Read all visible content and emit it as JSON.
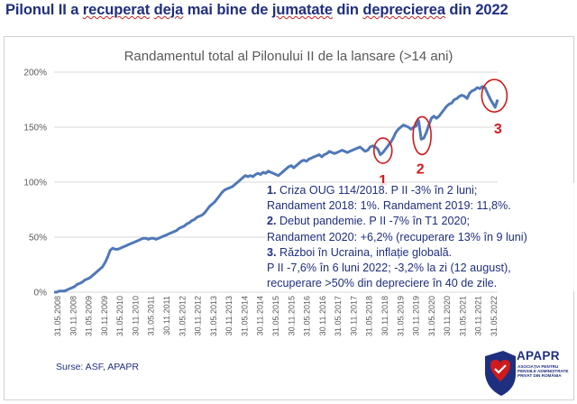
{
  "headline": {
    "parts": [
      "Pilonul II a ",
      "recuperat",
      " ",
      "deja",
      " mai bine de ",
      "jumatate",
      " din ",
      "deprecierea",
      " din 2022"
    ]
  },
  "colors": {
    "headline": "#1f2f80",
    "line": "#4f78b8",
    "marker": "#d11a1a",
    "grid": "#d9d9d9"
  },
  "chart_data": {
    "type": "line",
    "title": "Randamentul total al Pilonului II de la lansare (>14 ani)",
    "xlabel": "",
    "ylabel": "",
    "ylim": [
      0,
      200
    ],
    "yticks": [
      "0%",
      "50%",
      "100%",
      "150%",
      "200%"
    ],
    "x_tick_labels": [
      "31.05.2008",
      "30.11.2008",
      "31.05.2009",
      "30.11.2009",
      "31.05.2010",
      "30.11.2010",
      "31.05.2011",
      "30.11.2011",
      "31.05.2012",
      "30.11.2012",
      "31.05.2013",
      "30.11.2013",
      "31.05.2014",
      "30.11.2014",
      "31.05.2015",
      "30.11.2015",
      "31.05.2016",
      "30.11.2016",
      "31.05.2017",
      "30.11.2017",
      "31.05.2018",
      "30.11.2018",
      "31.05.2019",
      "30.11.2019",
      "31.05.2020",
      "30.11.2020",
      "31.05.2021",
      "30.11.2021",
      "31.05.2022"
    ],
    "series": [
      {
        "name": "Randament total Pilonul II",
        "x": [
          0,
          1,
          2,
          3,
          4,
          5,
          6,
          7,
          8,
          9,
          10,
          11,
          12,
          13,
          14,
          15,
          16,
          17,
          18,
          19,
          20,
          21,
          22,
          23,
          24,
          25,
          26,
          27,
          28,
          29,
          30,
          31,
          32,
          33,
          34,
          35,
          36,
          37,
          38,
          39,
          40,
          41,
          42,
          43,
          44,
          45,
          46,
          47,
          48,
          49,
          50,
          51,
          52,
          53,
          54,
          55,
          56,
          57,
          58,
          59,
          60,
          61,
          62,
          63,
          64,
          65,
          66,
          67,
          68,
          69,
          70,
          71,
          72,
          73,
          74,
          75,
          76,
          77,
          78,
          79,
          80,
          81,
          82,
          83,
          84,
          85,
          86,
          87,
          88,
          89,
          90,
          91,
          92,
          93,
          94,
          95,
          96,
          97,
          98,
          99,
          100,
          101,
          102,
          103,
          104,
          105,
          106,
          107,
          108,
          109,
          110,
          111,
          112,
          113,
          114,
          115,
          116,
          117,
          118,
          119,
          120,
          121,
          122,
          123,
          124,
          125,
          126,
          127,
          128,
          129,
          130,
          131,
          132,
          133,
          134,
          135,
          136,
          137,
          138,
          139,
          140,
          141,
          142,
          143,
          144,
          145,
          146,
          147,
          148,
          149,
          150,
          151,
          152,
          153,
          154,
          155,
          156,
          157,
          158,
          159,
          160,
          161,
          162,
          163,
          164,
          165,
          166,
          167,
          168,
          169,
          170,
          171,
          172,
          173,
          174
        ],
        "values": [
          0,
          0,
          1,
          1,
          1,
          2,
          3,
          4,
          5,
          7,
          8,
          9,
          11,
          12,
          13,
          15,
          17,
          19,
          21,
          23,
          27,
          32,
          38,
          40,
          39,
          39,
          40,
          41,
          42,
          43,
          44,
          45,
          46,
          47,
          48,
          49,
          49,
          48,
          49,
          49,
          48,
          49,
          50,
          51,
          52,
          53,
          54,
          55,
          56,
          58,
          59,
          60,
          62,
          63,
          65,
          66,
          68,
          69,
          70,
          72,
          75,
          78,
          80,
          82,
          85,
          88,
          91,
          93,
          94,
          95,
          96,
          98,
          100,
          102,
          104,
          106,
          105,
          106,
          105,
          107,
          108,
          107,
          109,
          108,
          110,
          109,
          108,
          107,
          106,
          108,
          110,
          112,
          114,
          115,
          113,
          115,
          117,
          119,
          120,
          119,
          121,
          122,
          123,
          124,
          125,
          123,
          125,
          126,
          128,
          127,
          126,
          127,
          128,
          129,
          128,
          127,
          128,
          129,
          130,
          131,
          132,
          130,
          128,
          129,
          132,
          133,
          132,
          130,
          125,
          127,
          130,
          133,
          136,
          140,
          145,
          148,
          150,
          152,
          151,
          150,
          148,
          150,
          151,
          156,
          139,
          140,
          145,
          152,
          158,
          160,
          158,
          160,
          163,
          166,
          169,
          171,
          172,
          175,
          176,
          178,
          179,
          178,
          176,
          181,
          183,
          184,
          186,
          185,
          187,
          186,
          181,
          176,
          172,
          168,
          175
        ]
      }
    ],
    "annotations": [
      {
        "label": "1",
        "event": "Criza OUG 114/2018"
      },
      {
        "label": "2",
        "event": "Debut pandemie"
      },
      {
        "label": "3",
        "event": "Război în Ucraina"
      }
    ]
  },
  "annotation_box": {
    "l1_num": "1.",
    "l1_text": " Criza OUG 114/2018. P II -3% în 2 luni;",
    "l2": "Randament 2018: 1%. Randament 2019: 11,8%.",
    "l3_num": "2.",
    "l3_text": " Debut pandemie. P II -7% în T1 2020;",
    "l4": "Randament 2020: +6,2% (recuperare 13% în 9 luni)",
    "l5_num": "3.",
    "l5_text": " Război în Ucraina, inflație globală.",
    "l6": "P II -7,6% în 6 luni 2022; -3,2% la zi (12 august),",
    "l7": "recuperare >50% din depreciere în 40 de zile."
  },
  "source": "Surse: ASF, APAPR",
  "logo": {
    "name": "APAPR",
    "subtitle": "ASOCIAȚIA PENTRU PENSIILE ADMINISTRATE PRIVAT DIN ROMÂNIA",
    "icon": "shield-heart-icon"
  }
}
